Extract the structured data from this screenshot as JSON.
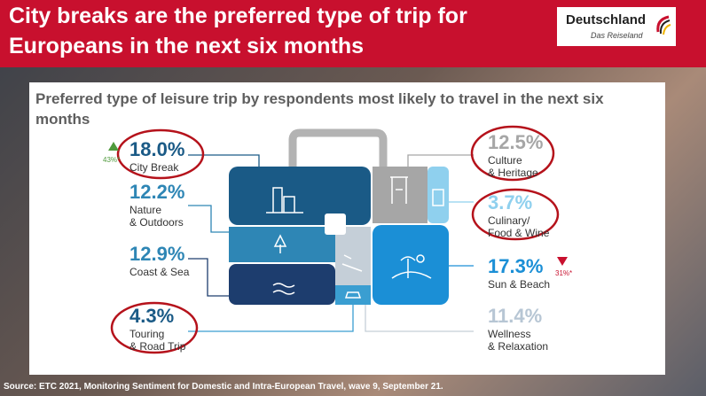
{
  "header": {
    "title_line1": "City breaks are the preferred type of trip for",
    "title_line2": "Europeans in the next six months",
    "logo_name": "Deutschland",
    "logo_sub": "Das Reiseland"
  },
  "chart_data": {
    "type": "infographic",
    "title": "Preferred type of leisure trip by respondents most likely to travel in the next six months",
    "unit": "%",
    "categories": [
      {
        "label": "City Break",
        "value": "18.0%",
        "change": "43%*",
        "direction": "up",
        "color": "#1a5a86",
        "highlighted": true
      },
      {
        "label": "Nature\n& Outdoors",
        "value": "12.2%",
        "color": "#2e86b5",
        "highlighted": false
      },
      {
        "label": "Coast & Sea",
        "value": "12.9%",
        "color": "#1d3d6e",
        "highlighted": false
      },
      {
        "label": "Touring\n& Road Trip",
        "value": "4.3%",
        "color": "#3a9ed1",
        "highlighted": true
      },
      {
        "label": "Culture\n& Heritage",
        "value": "12.5%",
        "color": "#a6a6a6",
        "highlighted": true
      },
      {
        "label": "Culinary/\nFood & Wine",
        "value": "3.7%",
        "color": "#8fd0ee",
        "highlighted": true
      },
      {
        "label": "Sun & Beach",
        "value": "17.3%",
        "change": "31%*",
        "direction": "down",
        "color": "#1b8fd6",
        "highlighted": false
      },
      {
        "label": "Wellness\n& Relaxation",
        "value": "11.4%",
        "color": "#c5cfd8",
        "highlighted": false
      }
    ]
  },
  "source": "Source: ETC 2021, Monitoring Sentiment for Domestic and Intra-European Travel, wave 9, September 21.",
  "colors": {
    "brand_red": "#c8102e",
    "up": "#4f9a3c",
    "down": "#c8102e",
    "ring": "#b5121b"
  }
}
